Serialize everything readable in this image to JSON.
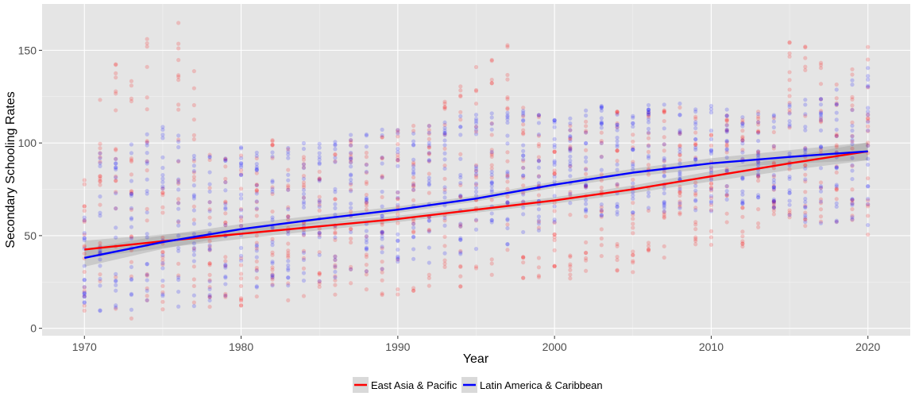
{
  "chart_data": {
    "type": "scatter",
    "xlabel": "Year",
    "ylabel": "Secondary Schooling Rates",
    "xlim": [
      1967.3,
      2022.7
    ],
    "ylim": [
      -4,
      175
    ],
    "x_ticks": [
      1970,
      1980,
      1990,
      2000,
      2010,
      2020
    ],
    "y_ticks": [
      0,
      50,
      100,
      150
    ],
    "x_minor_ticks": [
      1975,
      1985,
      1995,
      2005,
      2015
    ],
    "y_minor_ticks": [
      25,
      75,
      125
    ],
    "grid": true,
    "legend_position": "bottom",
    "point_opacity": 0.18,
    "series": [
      {
        "name": "East Asia & Pacific",
        "color": "#ff0000",
        "trend": {
          "x": [
            1970,
            1975,
            1980,
            1985,
            1990,
            1995,
            2000,
            2005,
            2010,
            2015,
            2020
          ],
          "y": [
            42.5,
            47,
            51,
            55,
            59,
            64,
            69,
            75,
            82,
            89,
            95.5
          ]
        },
        "scatter_ranges": [
          [
            1970,
            5,
            88
          ],
          [
            1971,
            5,
            134
          ],
          [
            1972,
            5,
            143
          ],
          [
            1973,
            5,
            155
          ],
          [
            1974,
            8,
            163
          ],
          [
            1975,
            9,
            88
          ],
          [
            1976,
            10,
            166
          ],
          [
            1977,
            10,
            163
          ],
          [
            1978,
            10,
            95
          ],
          [
            1979,
            12,
            92
          ],
          [
            1980,
            12,
            95
          ],
          [
            1981,
            15,
            98
          ],
          [
            1982,
            15,
            108
          ],
          [
            1983,
            15,
            108
          ],
          [
            1984,
            15,
            95
          ],
          [
            1985,
            15,
            95
          ],
          [
            1986,
            18,
            102
          ],
          [
            1987,
            18,
            105
          ],
          [
            1988,
            18,
            105
          ],
          [
            1989,
            18,
            108
          ],
          [
            1990,
            18,
            108
          ],
          [
            1991,
            20,
            110
          ],
          [
            1992,
            20,
            112
          ],
          [
            1993,
            22,
            135
          ],
          [
            1994,
            22,
            132
          ],
          [
            1995,
            22,
            143
          ],
          [
            1996,
            22,
            148
          ],
          [
            1997,
            22,
            153
          ],
          [
            1998,
            22,
            120
          ],
          [
            1999,
            25,
            115
          ],
          [
            2000,
            25,
            112
          ],
          [
            2001,
            25,
            110
          ],
          [
            2002,
            28,
            112
          ],
          [
            2003,
            30,
            118
          ],
          [
            2004,
            30,
            118
          ],
          [
            2005,
            30,
            118
          ],
          [
            2006,
            35,
            120
          ],
          [
            2007,
            35,
            122
          ],
          [
            2008,
            40,
            125
          ],
          [
            2009,
            45,
            118
          ],
          [
            2010,
            45,
            118
          ],
          [
            2011,
            45,
            120
          ],
          [
            2012,
            40,
            118
          ],
          [
            2013,
            50,
            118
          ],
          [
            2014,
            50,
            120
          ],
          [
            2015,
            50,
            157
          ],
          [
            2016,
            50,
            153
          ],
          [
            2017,
            52,
            150
          ],
          [
            2018,
            55,
            133
          ],
          [
            2019,
            58,
            140
          ],
          [
            2020,
            50,
            158
          ]
        ]
      },
      {
        "name": "Latin America & Caribbean",
        "color": "#0000ff",
        "trend": {
          "x": [
            1970,
            1975,
            1980,
            1985,
            1990,
            1995,
            2000,
            2005,
            2010,
            2015,
            2020
          ],
          "y": [
            38,
            46.5,
            53.5,
            59,
            64,
            70,
            77.5,
            84,
            89,
            92.5,
            95.5
          ]
        },
        "scatter_ranges": [
          [
            1970,
            10,
            60
          ],
          [
            1971,
            5,
            95
          ],
          [
            1972,
            10,
            92
          ],
          [
            1973,
            10,
            100
          ],
          [
            1974,
            10,
            105
          ],
          [
            1975,
            10,
            113
          ],
          [
            1976,
            10,
            106
          ],
          [
            1977,
            12,
            95
          ],
          [
            1978,
            15,
            95
          ],
          [
            1979,
            15,
            95
          ],
          [
            1980,
            15,
            98
          ],
          [
            1981,
            20,
            100
          ],
          [
            1982,
            20,
            100
          ],
          [
            1983,
            20,
            100
          ],
          [
            1984,
            20,
            100
          ],
          [
            1985,
            20,
            102
          ],
          [
            1986,
            25,
            105
          ],
          [
            1987,
            25,
            105
          ],
          [
            1988,
            25,
            108
          ],
          [
            1989,
            30,
            108
          ],
          [
            1990,
            30,
            108
          ],
          [
            1991,
            35,
            110
          ],
          [
            1992,
            35,
            110
          ],
          [
            1993,
            40,
            112
          ],
          [
            1994,
            40,
            115
          ],
          [
            1995,
            40,
            120
          ],
          [
            1996,
            40,
            120
          ],
          [
            1997,
            45,
            122
          ],
          [
            1998,
            50,
            118
          ],
          [
            1999,
            50,
            118
          ],
          [
            2000,
            50,
            118
          ],
          [
            2001,
            55,
            118
          ],
          [
            2002,
            55,
            118
          ],
          [
            2003,
            60,
            120
          ],
          [
            2004,
            60,
            120
          ],
          [
            2005,
            60,
            120
          ],
          [
            2006,
            60,
            122
          ],
          [
            2007,
            60,
            122
          ],
          [
            2008,
            62,
            122
          ],
          [
            2009,
            62,
            120
          ],
          [
            2010,
            62,
            120
          ],
          [
            2011,
            65,
            120
          ],
          [
            2012,
            65,
            120
          ],
          [
            2013,
            65,
            118
          ],
          [
            2014,
            65,
            118
          ],
          [
            2015,
            55,
            122
          ],
          [
            2016,
            55,
            125
          ],
          [
            2017,
            55,
            128
          ],
          [
            2018,
            55,
            133
          ],
          [
            2019,
            52,
            141
          ],
          [
            2020,
            55,
            142
          ]
        ]
      }
    ]
  }
}
